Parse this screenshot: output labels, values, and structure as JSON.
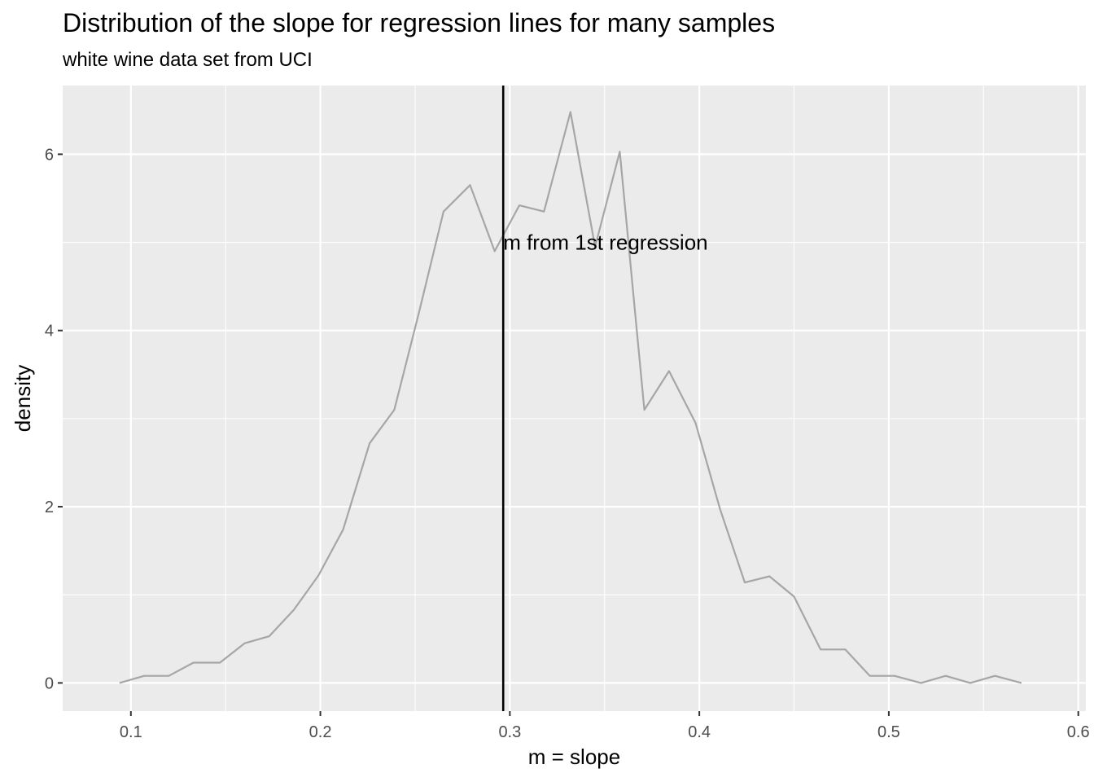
{
  "title": "Distribution of the slope for regression lines for many samples",
  "subtitle": "white wine data set from UCI",
  "chart_data": {
    "type": "line",
    "title": "Distribution of the slope for regression lines for many samples",
    "subtitle": "white wine data set from UCI",
    "xlabel": "m = slope",
    "ylabel": "density",
    "xlim": [
      0.064,
      0.604
    ],
    "ylim": [
      -0.32,
      6.78
    ],
    "x_ticks": [
      0.1,
      0.2,
      0.3,
      0.4,
      0.5,
      0.6
    ],
    "x_tick_labels": [
      "0.1",
      "0.2",
      "0.3",
      "0.4",
      "0.5",
      "0.6"
    ],
    "y_ticks": [
      0,
      2,
      4,
      6
    ],
    "y_tick_labels": [
      "0",
      "2",
      "4",
      "6"
    ],
    "grid": true,
    "background": "#ebebeb",
    "line_color": "#a6a6a6",
    "series": [
      {
        "x": [
          0.094,
          0.107,
          0.12,
          0.133,
          0.147,
          0.16,
          0.173,
          0.186,
          0.199,
          0.212,
          0.226,
          0.239,
          0.252,
          0.265,
          0.279,
          0.292,
          0.305,
          0.318,
          0.332,
          0.345,
          0.358,
          0.371,
          0.384,
          0.398,
          0.411,
          0.424,
          0.437,
          0.45,
          0.464,
          0.477,
          0.49,
          0.503,
          0.517,
          0.53,
          0.543,
          0.556,
          0.57
        ],
        "values": [
          0.0,
          0.08,
          0.08,
          0.23,
          0.23,
          0.45,
          0.53,
          0.83,
          1.22,
          1.74,
          2.72,
          3.1,
          4.2,
          5.35,
          5.65,
          4.9,
          5.42,
          5.35,
          6.48,
          4.95,
          6.03,
          3.1,
          3.54,
          2.95,
          1.97,
          1.14,
          1.21,
          0.98,
          0.38,
          0.38,
          0.08,
          0.08,
          0.0,
          0.08,
          0.0,
          0.08,
          0.0
        ]
      }
    ],
    "vline": {
      "x": 0.2965,
      "color": "#000000"
    },
    "annotation": {
      "text": "m from 1st regression",
      "x": 0.2965,
      "y": 5.0
    }
  }
}
